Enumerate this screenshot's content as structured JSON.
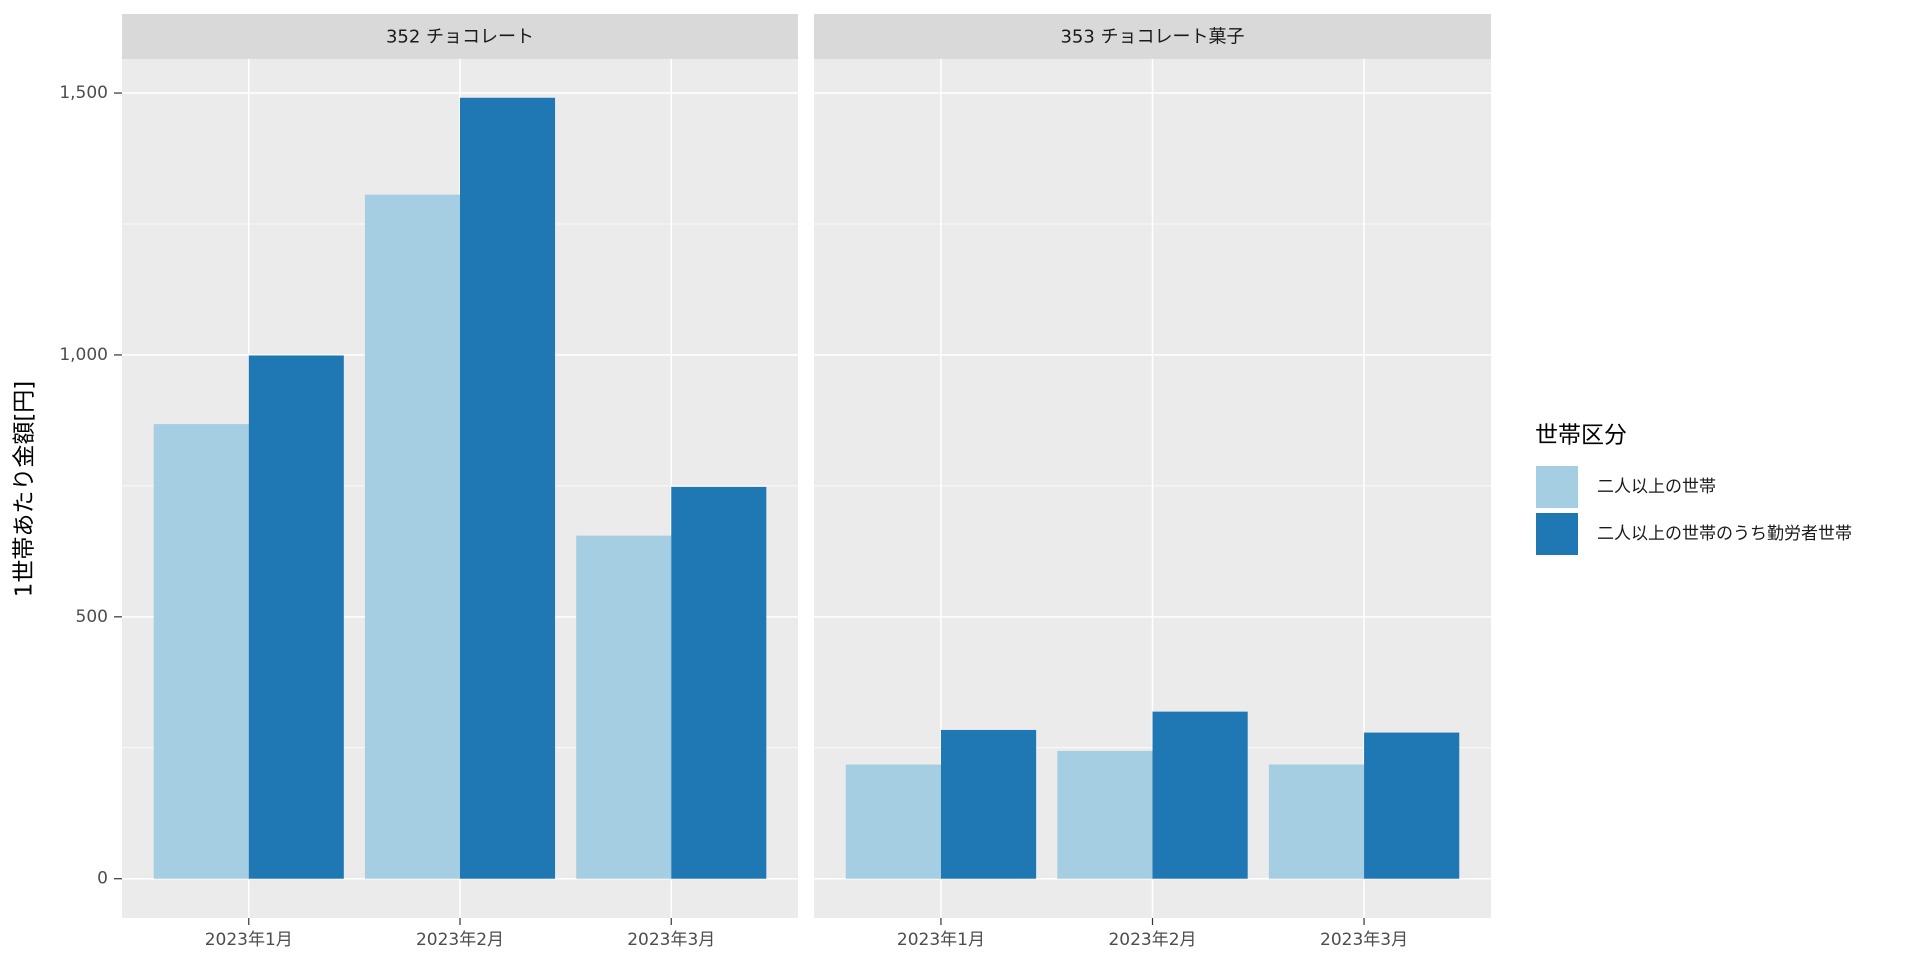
{
  "chart_data": {
    "type": "bar",
    "y_label": "1世帯あたり金額[円]",
    "legend_title": "世帯区分",
    "ylim": [
      -75,
      1565
    ],
    "yticks": [
      0,
      500,
      {
        "value": 1000,
        "label": "1,000"
      },
      {
        "value": 1500,
        "label": "1,500"
      }
    ],
    "grid": true,
    "facets": [
      {
        "title": "352 チョコレート",
        "categories": [
          "2023年1月",
          "2023年2月",
          "2023年3月"
        ],
        "series": [
          {
            "name": "二人以上の世帯",
            "color": "#a6cee3",
            "values": [
              868,
              1306,
              655
            ]
          },
          {
            "name": "二人以上の世帯のうち勤労者世帯",
            "color": "#1f78b4",
            "values": [
              999,
              1491,
              748
            ]
          }
        ]
      },
      {
        "title": "353 チョコレート菓子",
        "categories": [
          "2023年1月",
          "2023年2月",
          "2023年3月"
        ],
        "series": [
          {
            "name": "二人以上の世帯",
            "color": "#a6cee3",
            "values": [
              218,
              244,
              218
            ]
          },
          {
            "name": "二人以上の世帯のうち勤労者世帯",
            "color": "#1f78b4",
            "values": [
              284,
              319,
              279
            ]
          }
        ]
      }
    ]
  }
}
